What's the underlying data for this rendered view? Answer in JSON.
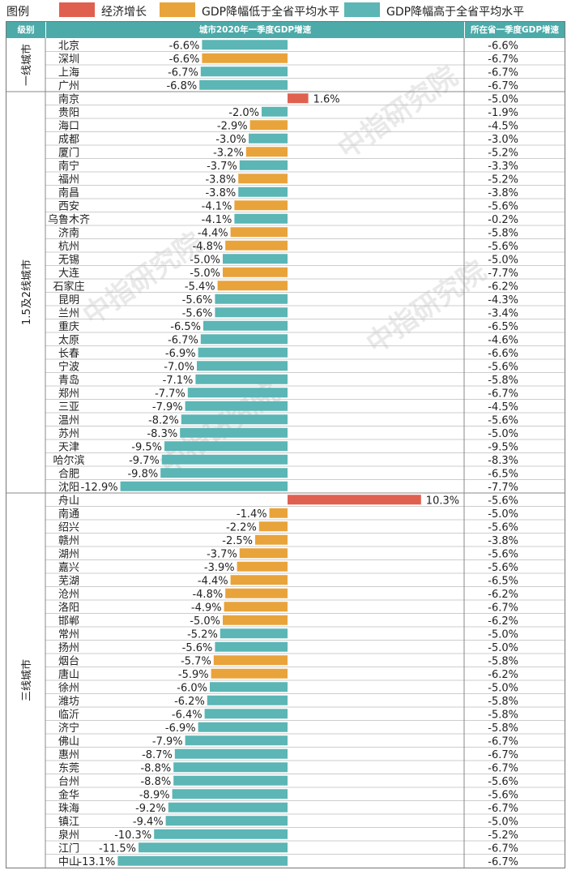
{
  "legend": {
    "title": "图例",
    "items": [
      {
        "label": "经济增长",
        "color": "#e0604f"
      },
      {
        "label": "GDP降幅低于全省平均水平",
        "color": "#e9a33b"
      },
      {
        "label": "GDP降幅高于全省平均水平",
        "color": "#5bb6b5"
      }
    ]
  },
  "header": {
    "tier": "级别",
    "city": "城市2020年一季度GDP增速",
    "province": "所在省一季度GDP增速"
  },
  "watermark": "中指研究院",
  "chart_data": {
    "type": "bar",
    "groups": [
      {
        "tier": "一线城市",
        "rows": [
          {
            "city": "北京",
            "value": -6.6,
            "province": -6.6,
            "cat": 2
          },
          {
            "city": "深圳",
            "value": -6.6,
            "province": -6.7,
            "cat": 1
          },
          {
            "city": "上海",
            "value": -6.7,
            "province": -6.7,
            "cat": 2
          },
          {
            "city": "广州",
            "value": -6.8,
            "province": -6.7,
            "cat": 2
          }
        ]
      },
      {
        "tier": "1.5及2线城市",
        "rows": [
          {
            "city": "南京",
            "value": 1.6,
            "province": -5.0,
            "cat": 0
          },
          {
            "city": "贵阳",
            "value": -2.0,
            "province": -1.9,
            "cat": 2
          },
          {
            "city": "海口",
            "value": -2.9,
            "province": -4.5,
            "cat": 1
          },
          {
            "city": "成都",
            "value": -3.0,
            "province": -3.0,
            "cat": 2
          },
          {
            "city": "厦门",
            "value": -3.2,
            "province": -5.2,
            "cat": 1
          },
          {
            "city": "南宁",
            "value": -3.7,
            "province": -3.3,
            "cat": 2
          },
          {
            "city": "福州",
            "value": -3.8,
            "province": -5.2,
            "cat": 1
          },
          {
            "city": "南昌",
            "value": -3.8,
            "province": -3.8,
            "cat": 2
          },
          {
            "city": "西安",
            "value": -4.1,
            "province": -5.6,
            "cat": 1
          },
          {
            "city": "乌鲁木齐",
            "value": -4.1,
            "province": -0.2,
            "cat": 2
          },
          {
            "city": "济南",
            "value": -4.4,
            "province": -5.8,
            "cat": 1
          },
          {
            "city": "杭州",
            "value": -4.8,
            "province": -5.6,
            "cat": 1
          },
          {
            "city": "无锡",
            "value": -5.0,
            "province": -5.0,
            "cat": 2
          },
          {
            "city": "大连",
            "value": -5.0,
            "province": -7.7,
            "cat": 1
          },
          {
            "city": "石家庄",
            "value": -5.4,
            "province": -6.2,
            "cat": 1
          },
          {
            "city": "昆明",
            "value": -5.6,
            "province": -4.3,
            "cat": 2
          },
          {
            "city": "兰州",
            "value": -5.6,
            "province": -3.4,
            "cat": 2
          },
          {
            "city": "重庆",
            "value": -6.5,
            "province": -6.5,
            "cat": 2
          },
          {
            "city": "太原",
            "value": -6.7,
            "province": -4.6,
            "cat": 2
          },
          {
            "city": "长春",
            "value": -6.9,
            "province": -6.6,
            "cat": 2
          },
          {
            "city": "宁波",
            "value": -7.0,
            "province": -5.6,
            "cat": 2
          },
          {
            "city": "青岛",
            "value": -7.1,
            "province": -5.8,
            "cat": 2
          },
          {
            "city": "郑州",
            "value": -7.7,
            "province": -6.7,
            "cat": 2
          },
          {
            "city": "三亚",
            "value": -7.9,
            "province": -4.5,
            "cat": 2
          },
          {
            "city": "温州",
            "value": -8.2,
            "province": -5.6,
            "cat": 2
          },
          {
            "city": "苏州",
            "value": -8.3,
            "province": -5.0,
            "cat": 2
          },
          {
            "city": "天津",
            "value": -9.5,
            "province": -9.5,
            "cat": 2
          },
          {
            "city": "哈尔滨",
            "value": -9.7,
            "province": -8.3,
            "cat": 2
          },
          {
            "city": "合肥",
            "value": -9.8,
            "province": -6.5,
            "cat": 2
          },
          {
            "city": "沈阳",
            "value": -12.9,
            "province": -7.7,
            "cat": 2
          }
        ]
      },
      {
        "tier": "三线城市",
        "rows": [
          {
            "city": "舟山",
            "value": 10.3,
            "province": -5.6,
            "cat": 0
          },
          {
            "city": "南通",
            "value": -1.4,
            "province": -5.0,
            "cat": 1
          },
          {
            "city": "绍兴",
            "value": -2.2,
            "province": -5.6,
            "cat": 1
          },
          {
            "city": "赣州",
            "value": -2.5,
            "province": -3.8,
            "cat": 1
          },
          {
            "city": "湖州",
            "value": -3.7,
            "province": -5.6,
            "cat": 1
          },
          {
            "city": "嘉兴",
            "value": -3.9,
            "province": -5.6,
            "cat": 1
          },
          {
            "city": "芜湖",
            "value": -4.4,
            "province": -6.5,
            "cat": 1
          },
          {
            "city": "沧州",
            "value": -4.8,
            "province": -6.2,
            "cat": 1
          },
          {
            "city": "洛阳",
            "value": -4.9,
            "province": -6.7,
            "cat": 1
          },
          {
            "city": "邯郸",
            "value": -5.0,
            "province": -6.2,
            "cat": 1
          },
          {
            "city": "常州",
            "value": -5.2,
            "province": -5.0,
            "cat": 2
          },
          {
            "city": "扬州",
            "value": -5.6,
            "province": -5.0,
            "cat": 2
          },
          {
            "city": "烟台",
            "value": -5.7,
            "province": -5.8,
            "cat": 1
          },
          {
            "city": "唐山",
            "value": -5.9,
            "province": -6.2,
            "cat": 1
          },
          {
            "city": "徐州",
            "value": -6.0,
            "province": -5.0,
            "cat": 2
          },
          {
            "city": "潍坊",
            "value": -6.2,
            "province": -5.8,
            "cat": 2
          },
          {
            "city": "临沂",
            "value": -6.4,
            "province": -5.8,
            "cat": 2
          },
          {
            "city": "济宁",
            "value": -6.9,
            "province": -5.8,
            "cat": 2
          },
          {
            "city": "佛山",
            "value": -7.9,
            "province": -6.7,
            "cat": 2
          },
          {
            "city": "惠州",
            "value": -8.7,
            "province": -6.7,
            "cat": 2
          },
          {
            "city": "东莞",
            "value": -8.8,
            "province": -6.7,
            "cat": 2
          },
          {
            "city": "台州",
            "value": -8.8,
            "province": -5.6,
            "cat": 2
          },
          {
            "city": "金华",
            "value": -8.9,
            "province": -5.6,
            "cat": 2
          },
          {
            "city": "珠海",
            "value": -9.2,
            "province": -6.7,
            "cat": 2
          },
          {
            "city": "镇江",
            "value": -9.4,
            "province": -5.0,
            "cat": 2
          },
          {
            "city": "泉州",
            "value": -10.3,
            "province": -5.2,
            "cat": 2
          },
          {
            "city": "江门",
            "value": -11.5,
            "province": -6.7,
            "cat": 2
          },
          {
            "city": "中山",
            "value": -13.1,
            "province": -6.7,
            "cat": 2
          }
        ]
      }
    ]
  }
}
